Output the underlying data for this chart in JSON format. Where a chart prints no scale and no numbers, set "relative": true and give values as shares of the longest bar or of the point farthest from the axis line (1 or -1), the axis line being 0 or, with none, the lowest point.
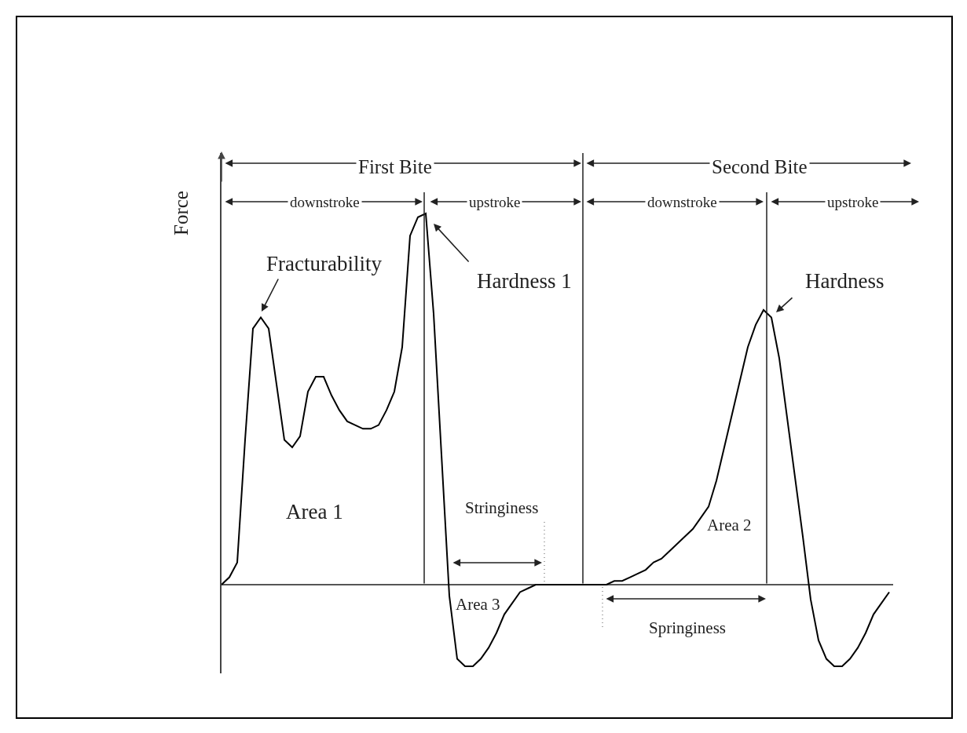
{
  "chart_data": {
    "type": "line",
    "relative": true,
    "ylabel": "Force",
    "categories": [
      null,
      null,
      null,
      null,
      null,
      null,
      null,
      null,
      null,
      null,
      null,
      null,
      null,
      null,
      null,
      null,
      null,
      null,
      null,
      null,
      null,
      null,
      null,
      null,
      null,
      null,
      null,
      null,
      null,
      null,
      null,
      null,
      null,
      null,
      null,
      null,
      null,
      null,
      null,
      null,
      null,
      null,
      null,
      null,
      null,
      null,
      null,
      null,
      null,
      null,
      null,
      null,
      null,
      null,
      null,
      null,
      null,
      null,
      null,
      null,
      null,
      null,
      null,
      null,
      null,
      null,
      null,
      null,
      null,
      null,
      null,
      null,
      null,
      null,
      null,
      null,
      null,
      null,
      null,
      null,
      null,
      null,
      null,
      null,
      null,
      null
    ],
    "series": [
      {
        "color": "#000000",
        "values": [
          0,
          0.02,
          0.06,
          0.39,
          0.69,
          0.72,
          0.69,
          0.54,
          0.39,
          0.37,
          0.4,
          0.52,
          0.56,
          0.56,
          0.51,
          0.47,
          0.44,
          0.43,
          0.42,
          0.42,
          0.43,
          0.47,
          0.52,
          0.64,
          0.94,
          0.99,
          1,
          0.73,
          0.35,
          -0.03,
          -0.2,
          -0.22,
          -0.22,
          -0.2,
          -0.17,
          -0.13,
          -0.08,
          -0.05,
          -0.02,
          -0.01,
          0,
          0,
          0,
          0,
          0,
          0,
          0,
          0,
          0,
          0,
          0.01,
          0.01,
          0.02,
          0.03,
          0.04,
          0.06,
          0.07,
          0.09,
          0.11,
          0.13,
          0.15,
          0.18,
          0.21,
          0.28,
          0.37,
          0.46,
          0.55,
          0.64,
          0.7,
          0.74,
          0.72,
          0.61,
          0.45,
          0.29,
          0.13,
          -0.04,
          -0.15,
          -0.2,
          -0.22,
          -0.22,
          -0.2,
          -0.17,
          -0.13,
          -0.08,
          -0.05,
          -0.02
        ]
      }
    ],
    "annotations": [
      "First Bite",
      "Second Bite",
      "downstroke",
      "upstroke",
      "downstroke",
      "upstroke",
      "Fracturability",
      "Hardness 1",
      "Hardness",
      "Area 1",
      "Stringiness",
      "Area 3",
      "Area 2",
      "Springiness"
    ]
  }
}
